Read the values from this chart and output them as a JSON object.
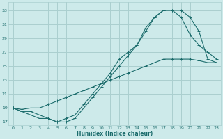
{
  "xlabel": "Humidex (Indice chaleur)",
  "bg_color": "#cdeaea",
  "grid_color": "#aacfcf",
  "line_color": "#1a6b6b",
  "xlim": [
    -0.5,
    23.5
  ],
  "ylim": [
    16.5,
    34.2
  ],
  "xticks": [
    0,
    1,
    2,
    3,
    4,
    5,
    6,
    7,
    8,
    9,
    10,
    11,
    12,
    13,
    14,
    15,
    16,
    17,
    18,
    19,
    20,
    21,
    22,
    23
  ],
  "yticks": [
    17,
    19,
    21,
    23,
    25,
    27,
    29,
    31,
    33
  ],
  "line1_x": [
    0,
    1,
    2,
    3,
    4,
    5,
    6,
    7,
    8,
    9,
    10,
    11,
    12,
    13,
    14,
    15,
    16,
    17,
    18,
    19,
    20,
    21,
    22,
    23
  ],
  "line1_y": [
    19,
    18.8,
    19,
    19,
    19.5,
    20,
    20.5,
    21,
    21.5,
    22,
    22.5,
    23,
    23.5,
    24,
    24.5,
    25,
    25.5,
    26,
    26,
    26,
    26,
    25.8,
    25.5,
    25.5
  ],
  "line2_x": [
    0,
    1,
    2,
    3,
    4,
    5,
    6,
    7,
    8,
    9,
    10,
    11,
    12,
    13,
    14,
    15,
    16,
    17,
    18,
    19,
    20,
    21,
    22,
    23
  ],
  "line2_y": [
    19,
    18.5,
    18.5,
    18,
    17.5,
    17,
    17.5,
    18,
    19.5,
    21,
    22.5,
    24,
    26,
    27,
    28,
    30,
    32,
    33,
    33,
    32,
    29.5,
    28,
    27,
    26
  ],
  "line3_x": [
    0,
    1,
    2,
    3,
    4,
    5,
    6,
    7,
    8,
    9,
    10,
    11,
    12,
    13,
    14,
    15,
    16,
    17,
    18,
    19,
    20,
    21,
    22,
    23
  ],
  "line3_y": [
    19,
    18.5,
    18,
    17.5,
    17.5,
    17,
    17,
    17.5,
    19,
    20.5,
    22,
    23.5,
    25,
    26.5,
    28,
    30.5,
    32,
    33,
    33,
    33,
    32,
    30,
    26,
    25.5
  ]
}
